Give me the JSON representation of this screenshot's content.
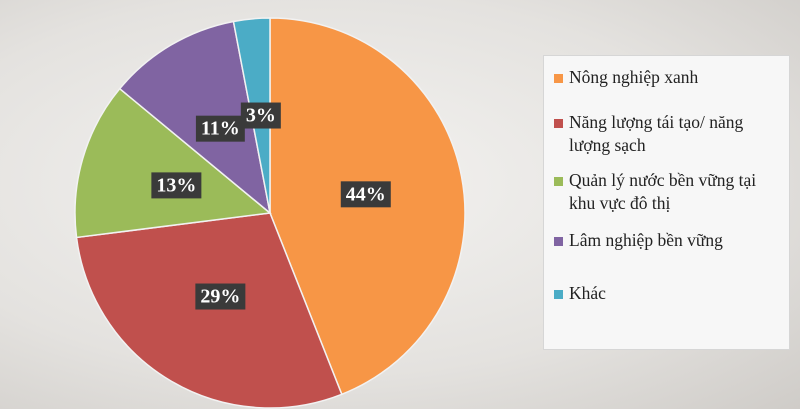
{
  "chart_data": {
    "type": "pie",
    "categories": [
      "Nông nghiệp xanh",
      "Năng lượng tái tạo/ năng lượng sạch",
      "Quản lý nước bền vững tại khu vực đô thị",
      "Lâm nghiệp bền vững",
      "Khác"
    ],
    "values": [
      44,
      29,
      13,
      11,
      3
    ],
    "value_labels": [
      "44%",
      "29%",
      "13%",
      "11%",
      "3%"
    ],
    "colors": [
      "#f79646",
      "#c0504d",
      "#9bbb59",
      "#8064a2",
      "#4bacc6"
    ]
  }
}
